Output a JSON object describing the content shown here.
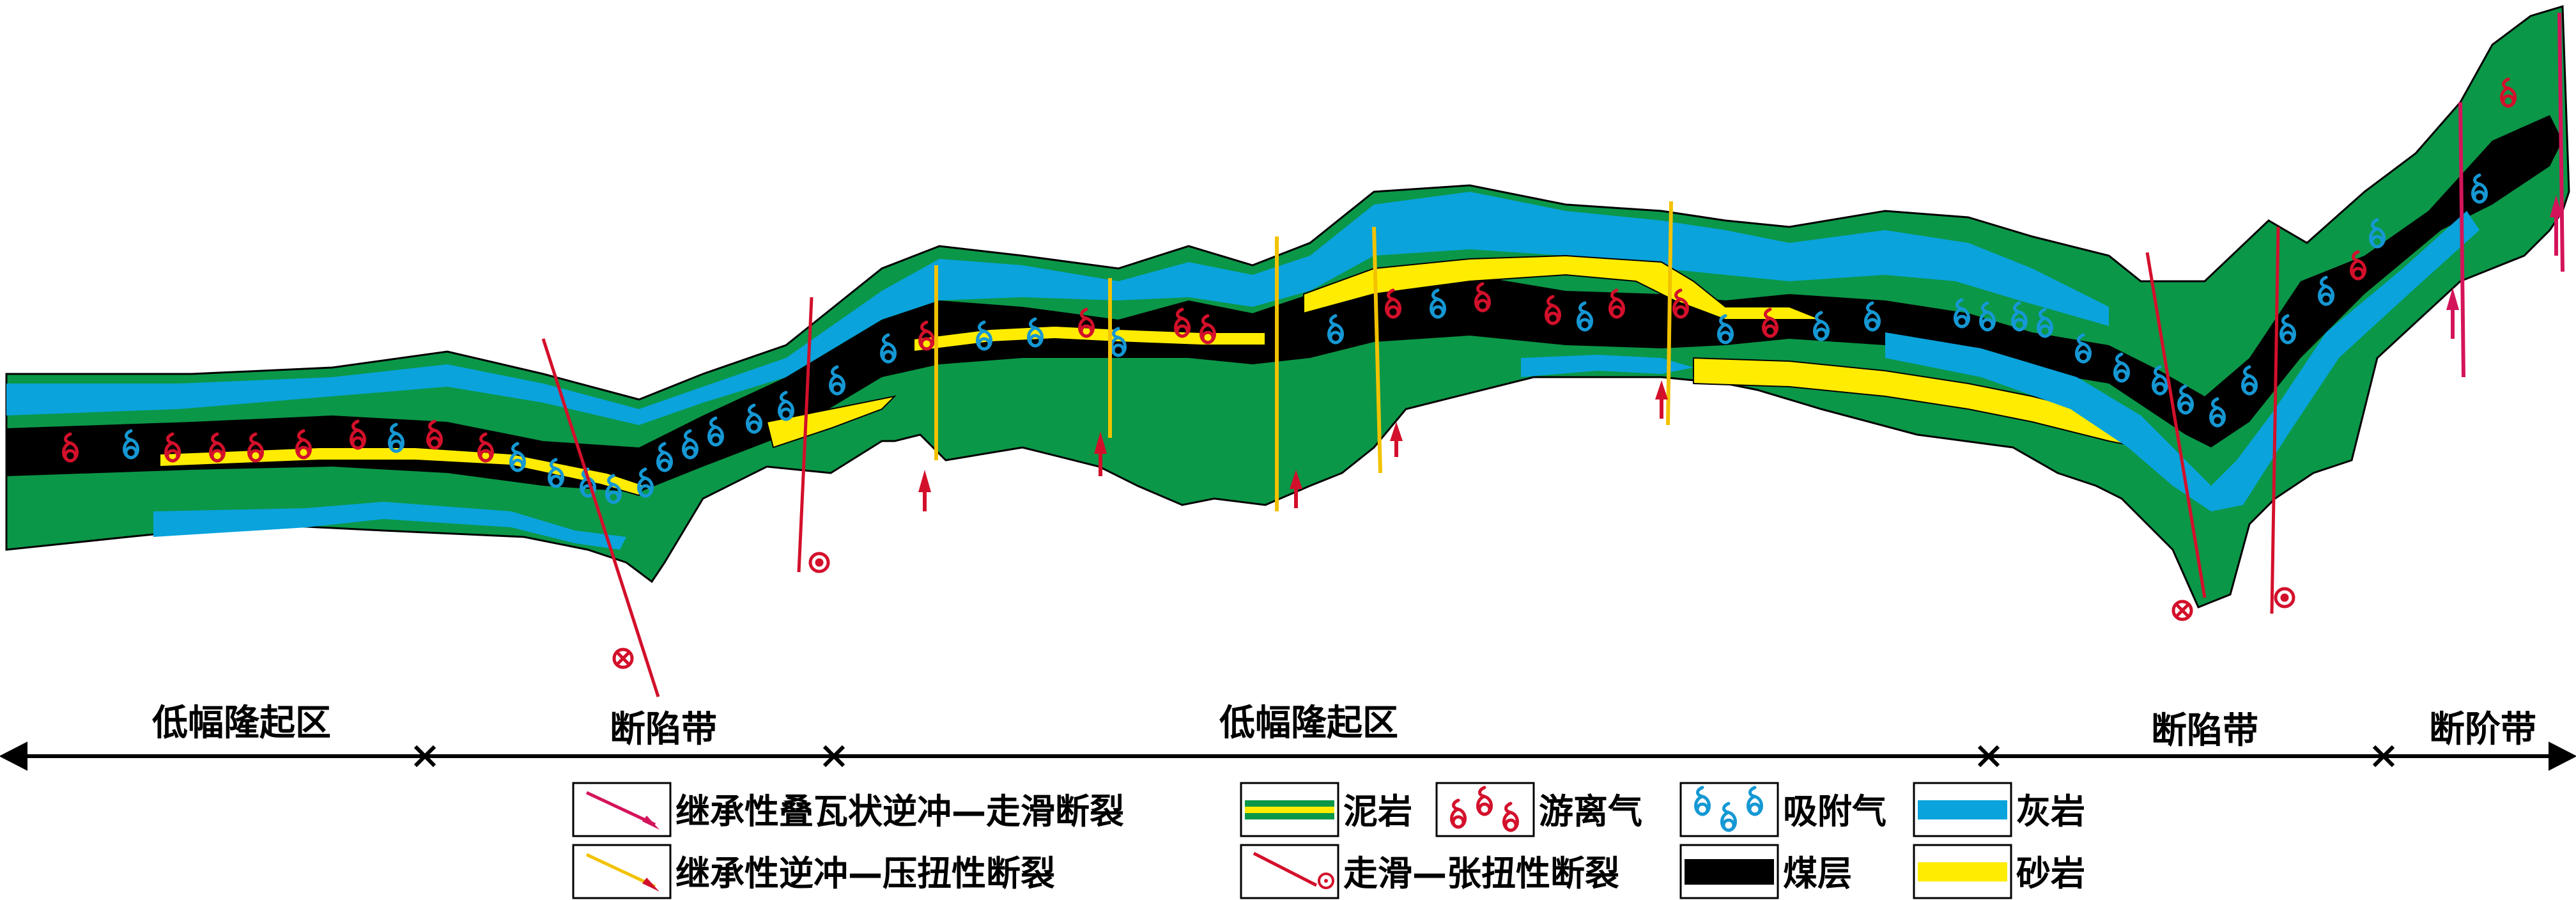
{
  "zones": [
    {
      "label": "低幅隆起区"
    },
    {
      "label": "断陷带"
    },
    {
      "label": "低幅隆起区"
    },
    {
      "label": "断陷带"
    },
    {
      "label": "断阶带"
    }
  ],
  "legend": {
    "inherited_imbricate_fault": "继承性叠瓦状逆冲—走滑断裂",
    "inherited_thrust_fault": "继承性逆冲—压扭性断裂",
    "mudstone": "泥岩",
    "strike_slip_fault": "走滑—张扭性断裂",
    "free_gas": "游离气",
    "coal_seam": "煤层",
    "adsorbed_gas": "吸附气",
    "limestone": "灰岩",
    "sandstone": "砂岩"
  },
  "colors": {
    "mudstone": "#0b9748",
    "limestone": "#0aa3dc",
    "sandstone": "#ffec00",
    "coal": "#000000",
    "free_gas": "#d3102b",
    "adsorbed_gas": "#1598d4",
    "imbricate_fault": "#d4145a",
    "thrust_fault": "#f2c200",
    "strike_fault": "#d3102b"
  }
}
